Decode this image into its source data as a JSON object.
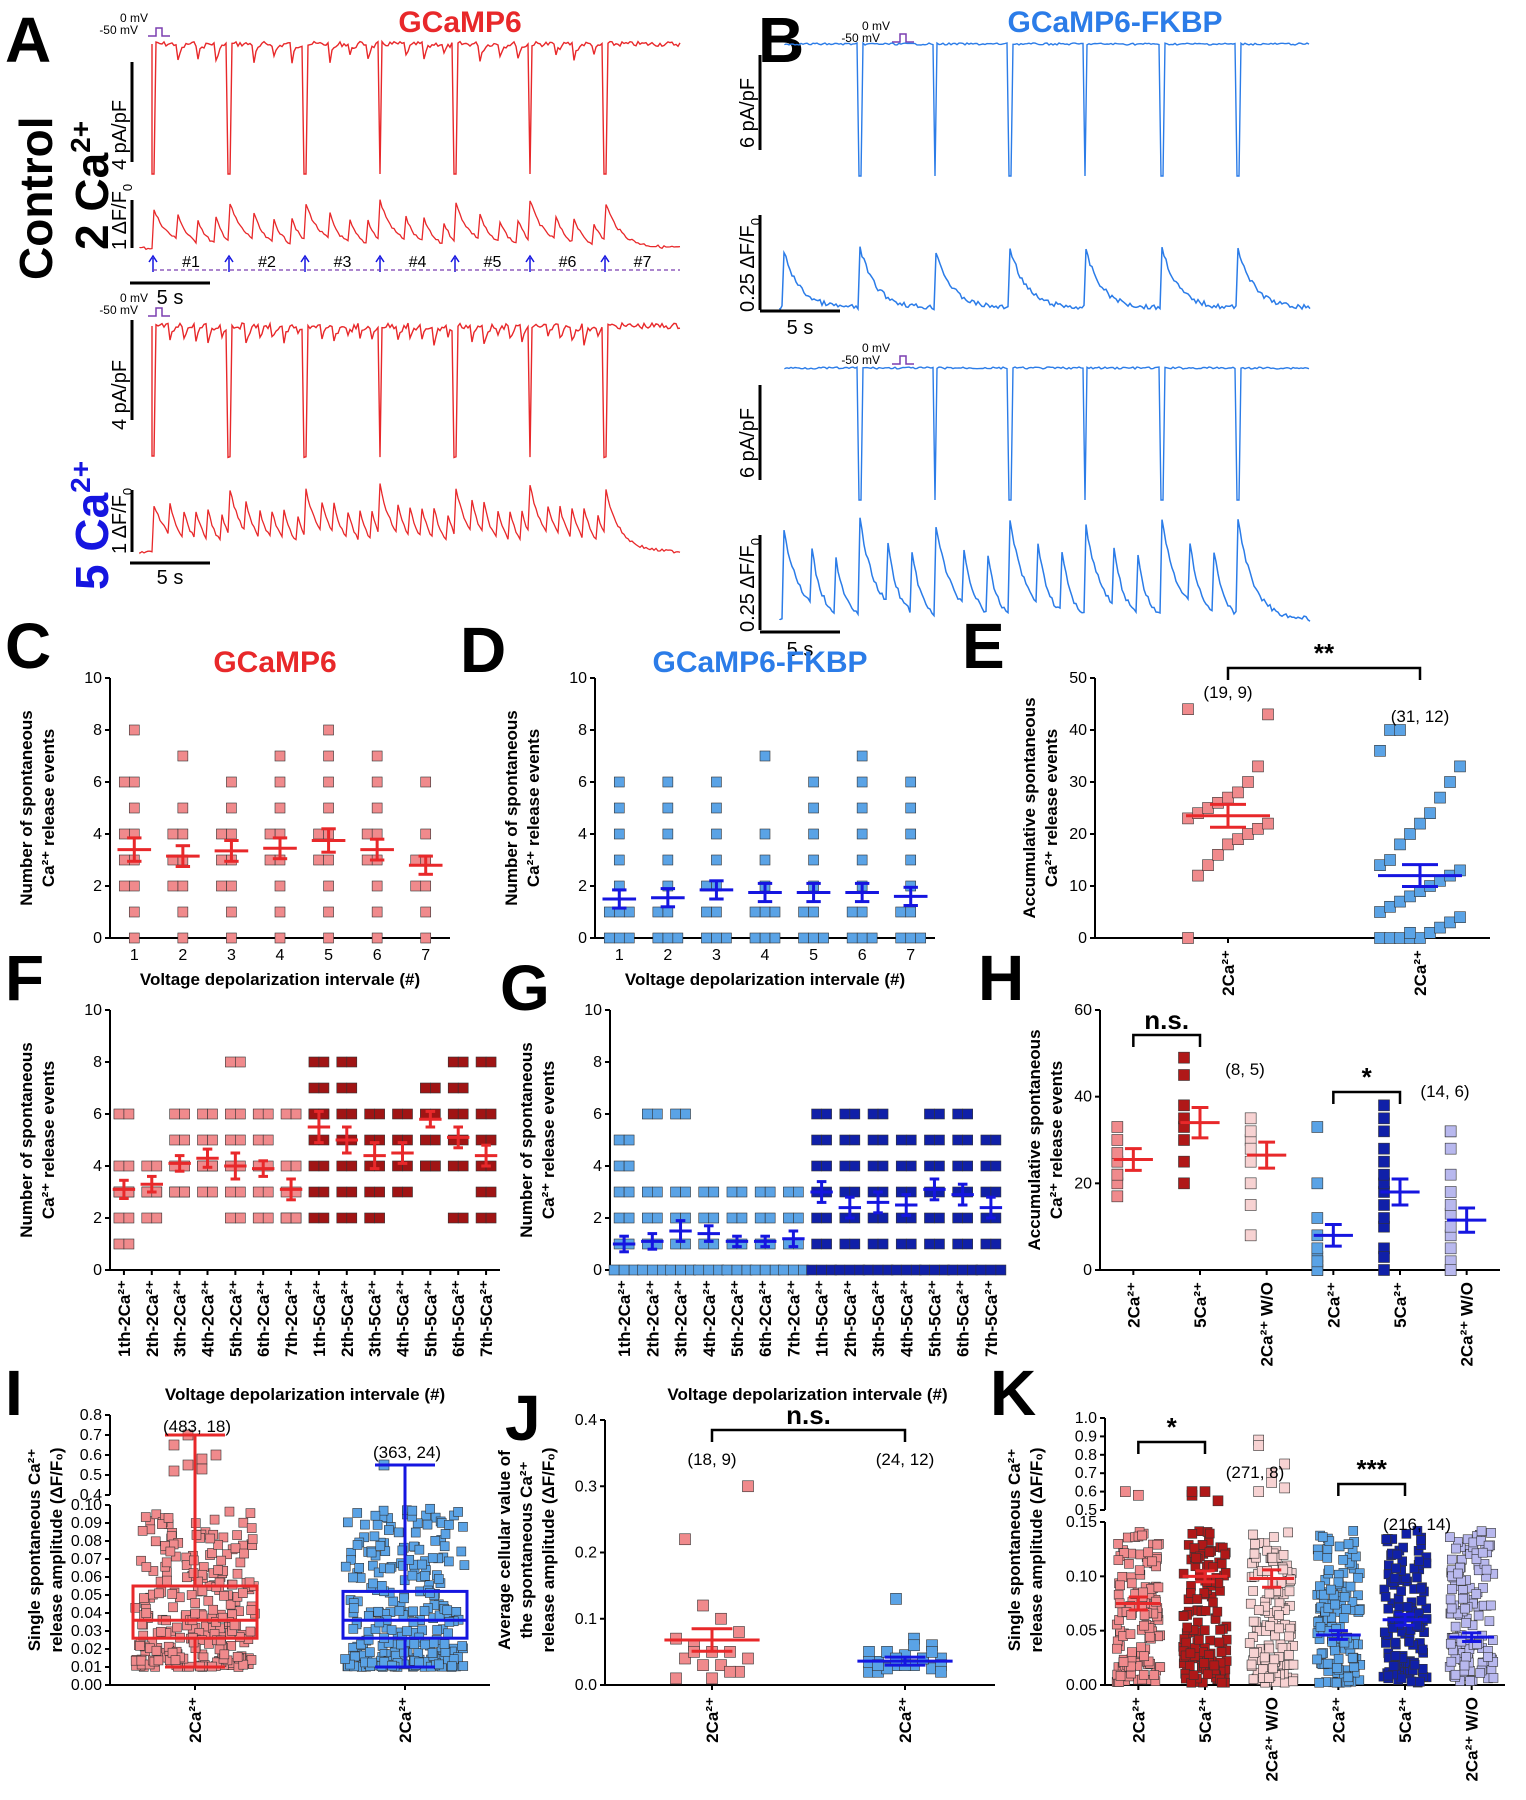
{
  "traces": {
    "title_left": "GCaMP6",
    "title_right": "GCaMP6-FKBP",
    "row_label_top": [
      "Control",
      "2 Ca"
    ],
    "row_label_top_sup": "2+",
    "row_label_bottom": "5 Ca",
    "row_label_bottom_sup": "2+",
    "mv0": "0 mV",
    "mv50": "-50 mV",
    "left_current_scale": "4 pA/pF",
    "right_current_scale": "6 pA/pF",
    "left_df_scale": "1 ΔF/F",
    "right_df_scale": "0.25 ΔF/F",
    "df_sub": "0",
    "time_scale": "5 s",
    "intervals": [
      "#1",
      "#2",
      "#3",
      "#4",
      "#5",
      "#6",
      "#7"
    ],
    "colors": {
      "red": "#e8282a",
      "blue": "#2b7ce8",
      "purple": "#7b3fb0"
    }
  },
  "chart_data": [
    {
      "panel": "C",
      "type": "scatter",
      "title": "GCaMP6",
      "color": "#e8282a",
      "marker": "#f08a8c",
      "ylabel": [
        "Number of spontaneous",
        "Ca²⁺ release events"
      ],
      "xlabel": "Voltage depolarization intervale (#)",
      "ylim": [
        0,
        10
      ],
      "yticks": [
        0,
        2,
        4,
        6,
        8,
        10
      ],
      "categories": [
        "1",
        "2",
        "3",
        "4",
        "5",
        "6",
        "7"
      ],
      "means": [
        3.4,
        3.15,
        3.35,
        3.45,
        3.75,
        3.4,
        2.8
      ],
      "sem": [
        0.45,
        0.4,
        0.4,
        0.4,
        0.45,
        0.4,
        0.35
      ],
      "values": [
        [
          0,
          1,
          2,
          3,
          4,
          5,
          6,
          8,
          3,
          4,
          2,
          6
        ],
        [
          0,
          1,
          2,
          3,
          4,
          5,
          7,
          3,
          4,
          2
        ],
        [
          0,
          1,
          2,
          3,
          4,
          5,
          6,
          3,
          4,
          2
        ],
        [
          0,
          1,
          2,
          3,
          4,
          5,
          6,
          7,
          3,
          4
        ],
        [
          0,
          1,
          2,
          3,
          4,
          5,
          6,
          8,
          7,
          4,
          3
        ],
        [
          0,
          1,
          2,
          3,
          4,
          5,
          6,
          7,
          3,
          4
        ],
        [
          0,
          1,
          2,
          3,
          4,
          6,
          3,
          2
        ]
      ]
    },
    {
      "panel": "D",
      "type": "scatter",
      "title": "GCaMP6-FKBP",
      "color": "#1515e0",
      "marker": "#5aa3e6",
      "ylabel": [
        "Number of spontaneous",
        "Ca²⁺ release events"
      ],
      "xlabel": "Voltage depolarization intervale (#)",
      "ylim": [
        0,
        10
      ],
      "yticks": [
        0,
        2,
        4,
        6,
        8,
        10
      ],
      "categories": [
        "1",
        "2",
        "3",
        "4",
        "5",
        "6",
        "7"
      ],
      "means": [
        1.5,
        1.55,
        1.85,
        1.75,
        1.75,
        1.75,
        1.6
      ],
      "sem": [
        0.35,
        0.35,
        0.35,
        0.35,
        0.35,
        0.35,
        0.35
      ],
      "values": [
        [
          0,
          0,
          1,
          1,
          2,
          3,
          4,
          5,
          6,
          0,
          1
        ],
        [
          0,
          0,
          1,
          1,
          2,
          3,
          4,
          5,
          6,
          0
        ],
        [
          0,
          0,
          1,
          1,
          2,
          3,
          4,
          5,
          6,
          0,
          2
        ],
        [
          0,
          0,
          1,
          1,
          2,
          3,
          4,
          7,
          0,
          1
        ],
        [
          0,
          0,
          1,
          1,
          2,
          3,
          4,
          5,
          6,
          0
        ],
        [
          0,
          0,
          1,
          1,
          2,
          3,
          4,
          5,
          6,
          7,
          0
        ],
        [
          0,
          0,
          1,
          1,
          2,
          3,
          4,
          5,
          6,
          0
        ]
      ]
    },
    {
      "panel": "E",
      "type": "scatter",
      "ylabel": [
        "Accumulative spontaneous",
        "Ca²⁺ release events"
      ],
      "ylim": [
        0,
        50
      ],
      "yticks": [
        0,
        10,
        20,
        30,
        40,
        50
      ],
      "categories": [
        "2Ca²⁺",
        "2Ca²⁺"
      ],
      "colors": [
        "#e8282a",
        "#1515e0"
      ],
      "markers": [
        "#f08a8c",
        "#5aa3e6"
      ],
      "means": [
        23.5,
        12
      ],
      "sem": [
        2.2,
        2.1
      ],
      "n_labels": [
        "(19, 9)",
        "(31, 12)"
      ],
      "significance": "**",
      "values": [
        [
          0,
          12,
          14,
          16,
          18,
          19,
          20,
          21,
          22,
          23,
          24,
          25,
          26,
          27,
          28,
          30,
          33,
          43,
          44
        ],
        [
          0,
          0,
          0,
          0,
          0,
          1,
          2,
          3,
          4,
          5,
          6,
          7,
          8,
          9,
          10,
          11,
          12,
          13,
          14,
          15,
          18,
          20,
          22,
          24,
          27,
          30,
          33,
          36,
          40,
          40,
          1
        ]
      ]
    },
    {
      "panel": "F",
      "type": "scatter",
      "ylabel": [
        "Number of spontaneous",
        "Ca²⁺ release events"
      ],
      "xlabel": "Voltage depolarization intervale (#)",
      "ylim": [
        0,
        10
      ],
      "yticks": [
        0,
        2,
        4,
        6,
        8,
        10
      ],
      "categories": [
        "1th-2Ca²⁺",
        "2th-2Ca²⁺",
        "3th-2Ca²⁺",
        "4th-2Ca²⁺",
        "5th-2Ca²⁺",
        "6th-2Ca²⁺",
        "7th-2Ca²⁺",
        "1th-5Ca²⁺",
        "2th-5Ca²⁺",
        "3th-5Ca²⁺",
        "4th-5Ca²⁺",
        "5th-5Ca²⁺",
        "6th-5Ca²⁺",
        "7th-5Ca²⁺"
      ],
      "means": [
        3.1,
        3.3,
        4.1,
        4.3,
        4.0,
        3.9,
        3.1,
        5.5,
        5.0,
        4.4,
        4.5,
        5.8,
        5.1,
        4.4
      ],
      "sem": [
        0.35,
        0.3,
        0.3,
        0.35,
        0.5,
        0.3,
        0.4,
        0.6,
        0.5,
        0.5,
        0.4,
        0.3,
        0.4,
        0.4
      ],
      "values": [
        [
          1,
          2,
          3,
          4,
          6,
          3
        ],
        [
          2,
          3,
          4,
          3
        ],
        [
          3,
          4,
          5,
          6,
          3
        ],
        [
          3,
          4,
          5,
          6,
          4
        ],
        [
          2,
          3,
          4,
          5,
          6,
          8
        ],
        [
          2,
          3,
          4,
          5,
          6
        ],
        [
          2,
          3,
          4,
          6,
          2
        ],
        [
          2,
          3,
          4,
          5,
          6,
          7,
          8,
          6
        ],
        [
          2,
          3,
          4,
          5,
          6,
          7,
          8
        ],
        [
          2,
          3,
          4,
          5,
          6
        ],
        [
          3,
          4,
          5,
          6
        ],
        [
          4,
          5,
          6,
          7,
          4
        ],
        [
          2,
          4,
          5,
          6,
          7,
          8
        ],
        [
          2,
          3,
          4,
          5,
          6,
          8
        ]
      ]
    },
    {
      "panel": "G",
      "type": "scatter",
      "ylabel": [
        "Number of spontaneous",
        "Ca²⁺ release events"
      ],
      "xlabel": "Voltage depolarization intervale (#)",
      "ylim": [
        0,
        10
      ],
      "yticks": [
        0,
        2,
        4,
        6,
        8,
        10
      ],
      "categories": [
        "1th-2Ca²⁺",
        "2th-2Ca²⁺",
        "3th-2Ca²⁺",
        "4th-2Ca²⁺",
        "5th-2Ca²⁺",
        "6th-2Ca²⁺",
        "7th-2Ca²⁺",
        "1th-5Ca²⁺",
        "2th-5Ca²⁺",
        "3th-5Ca²⁺",
        "4th-5Ca²⁺",
        "5th-5Ca²⁺",
        "6th-5Ca²⁺",
        "7th-5Ca²⁺"
      ],
      "means": [
        1.0,
        1.1,
        1.5,
        1.4,
        1.1,
        1.1,
        1.2,
        3.0,
        2.4,
        2.6,
        2.5,
        3.1,
        2.9,
        2.4
      ],
      "sem": [
        0.3,
        0.3,
        0.4,
        0.3,
        0.2,
        0.2,
        0.3,
        0.4,
        0.4,
        0.4,
        0.4,
        0.4,
        0.4,
        0.4
      ],
      "values": [
        [
          0,
          1,
          2,
          3,
          4,
          5
        ],
        [
          0,
          1,
          2,
          3,
          6
        ],
        [
          0,
          1,
          2,
          3,
          6
        ],
        [
          0,
          1,
          2,
          3
        ],
        [
          0,
          1,
          2,
          3
        ],
        [
          0,
          1,
          2,
          3
        ],
        [
          0,
          1,
          2,
          3
        ],
        [
          0,
          1,
          2,
          3,
          4,
          5,
          6
        ],
        [
          0,
          1,
          2,
          3,
          4,
          5,
          6
        ],
        [
          0,
          1,
          2,
          3,
          4,
          5,
          6
        ],
        [
          0,
          1,
          2,
          3,
          4,
          5
        ],
        [
          0,
          1,
          2,
          3,
          4,
          5,
          6
        ],
        [
          0,
          1,
          2,
          3,
          4,
          5,
          6
        ],
        [
          0,
          1,
          2,
          3,
          4,
          5
        ]
      ]
    },
    {
      "panel": "H",
      "type": "scatter",
      "ylabel": [
        "Accumulative spontaneous",
        "Ca²⁺ release events"
      ],
      "ylim": [
        0,
        60
      ],
      "yticks": [
        0,
        20,
        40,
        60
      ],
      "categories": [
        "2Ca²⁺",
        "5Ca²⁺",
        "2Ca²⁺ W/O",
        "2Ca²⁺",
        "5Ca²⁺",
        "2Ca²⁺ W/O"
      ],
      "colors": [
        "#e8282a",
        "#e8282a",
        "#e8282a",
        "#1515e0",
        "#1515e0",
        "#1515e0"
      ],
      "markers": [
        "#f08a8c",
        "#b01818",
        "#f7d2d2",
        "#5aa3e6",
        "#1020a8",
        "#b8b8ee"
      ],
      "means": [
        25.5,
        34,
        26.5,
        8,
        18,
        11.5
      ],
      "sem": [
        2.5,
        3.5,
        3,
        2.5,
        3,
        2.8
      ],
      "n_labels": [
        "(8, 5)",
        "(14, 6)"
      ],
      "significance": [
        "n.s.",
        "*"
      ],
      "values": [
        [
          17,
          20,
          22,
          25,
          27,
          30,
          33,
          22
        ],
        [
          20,
          25,
          30,
          33,
          35,
          38,
          45,
          49
        ],
        [
          8,
          15,
          20,
          25,
          30,
          32,
          35,
          28
        ],
        [
          0,
          1,
          2,
          3,
          5,
          8,
          12,
          20,
          33,
          0,
          2
        ],
        [
          0,
          5,
          10,
          15,
          18,
          20,
          22,
          25,
          28,
          32,
          35,
          38,
          12,
          3
        ],
        [
          0,
          2,
          5,
          8,
          10,
          13,
          15,
          18,
          22,
          28,
          32,
          32,
          0
        ]
      ]
    },
    {
      "panel": "I",
      "type": "scatter",
      "ylabel": [
        "Single spontaneous Ca²⁺",
        "release amplitude (ΔF/F₀)"
      ],
      "ylim_lower": [
        0,
        0.1
      ],
      "ylim_upper": [
        0.4,
        0.8
      ],
      "yticks_lower": [
        0.0,
        0.01,
        0.02,
        0.03,
        0.04,
        0.05,
        0.06,
        0.07,
        0.08,
        0.09,
        0.1
      ],
      "yticks_upper": [
        0.4,
        0.5,
        0.6,
        0.7,
        0.8
      ],
      "categories": [
        "2Ca²⁺",
        "2Ca²⁺"
      ],
      "colors": [
        "#e8282a",
        "#1515e0"
      ],
      "markers": [
        "#f08a8c",
        "#5aa3e6"
      ],
      "n_labels": [
        "(483, 18)",
        "(363, 24)"
      ],
      "box": [
        {
          "q1": 0.026,
          "median": 0.036,
          "q3": 0.055,
          "min": 0.01,
          "max": 0.7
        },
        {
          "q1": 0.026,
          "median": 0.036,
          "q3": 0.052,
          "min": 0.01,
          "max": 0.55
        }
      ],
      "outliers": [
        [
          0.52,
          0.55,
          0.58,
          0.6,
          0.65,
          0.7,
          0.53
        ],
        [
          0.55
        ]
      ]
    },
    {
      "panel": "J",
      "type": "scatter",
      "ylabel": [
        "Average cellular value of",
        "the spontaneous Ca²⁺",
        "release amplitude (ΔF/F₀)"
      ],
      "ylim": [
        0,
        0.4
      ],
      "yticks": [
        0.0,
        0.1,
        0.2,
        0.3,
        0.4
      ],
      "categories": [
        "2Ca²⁺",
        "2Ca²⁺"
      ],
      "colors": [
        "#e8282a",
        "#1515e0"
      ],
      "markers": [
        "#f08a8c",
        "#5aa3e6"
      ],
      "means": [
        0.068,
        0.036
      ],
      "sem": [
        0.017,
        0.006
      ],
      "n_labels": [
        "(18,  9)",
        "(24, 12)"
      ],
      "significance": "n.s.",
      "values": [
        [
          0.01,
          0.02,
          0.03,
          0.03,
          0.04,
          0.04,
          0.05,
          0.05,
          0.06,
          0.07,
          0.08,
          0.1,
          0.12,
          0.22,
          0.3,
          0.02,
          0.01,
          0.05
        ],
        [
          0.02,
          0.025,
          0.03,
          0.03,
          0.035,
          0.04,
          0.04,
          0.045,
          0.05,
          0.05,
          0.06,
          0.07,
          0.13,
          0.02,
          0.03,
          0.04,
          0.03,
          0.025,
          0.035,
          0.05,
          0.06,
          0.04,
          0.03,
          0.02
        ]
      ]
    },
    {
      "panel": "K",
      "type": "scatter",
      "ylabel": [
        "Single spontaneous Ca²⁺",
        "release amplitude (ΔF/F₀)"
      ],
      "ylim_lower": [
        0,
        0.15
      ],
      "ylim_upper": [
        0.5,
        1.0
      ],
      "yticks_lower": [
        0.0,
        0.05,
        0.1,
        0.15
      ],
      "yticks_upper": [
        0.5,
        0.6,
        0.7,
        0.8,
        0.9,
        1.0
      ],
      "categories": [
        "2Ca²⁺",
        "5Ca²⁺",
        "2Ca²⁺ W/O",
        "2Ca²⁺",
        "5Ca²⁺",
        "2Ca²⁺ W/O"
      ],
      "colors": [
        "#e8282a",
        "#e8282a",
        "#e8282a",
        "#1515e0",
        "#1515e0",
        "#1515e0"
      ],
      "markers": [
        "#f08a8c",
        "#b01818",
        "#f7d2d2",
        "#5aa3e6",
        "#1020a8",
        "#b8b8ee"
      ],
      "means": [
        0.075,
        0.1,
        0.098,
        0.046,
        0.06,
        0.044
      ],
      "sem": [
        0.006,
        0.005,
        0.008,
        0.004,
        0.005,
        0.004
      ],
      "n_labels": [
        "(271, 8)",
        "(216, 14)"
      ],
      "significance": [
        "*",
        "***"
      ],
      "outliers": [
        [
          0.6,
          0.58
        ],
        [
          0.58,
          0.6,
          0.55,
          0.6
        ],
        [
          0.88,
          0.7,
          0.75,
          0.6,
          0.65,
          0.62,
          0.85
        ],
        [],
        [],
        []
      ]
    }
  ]
}
